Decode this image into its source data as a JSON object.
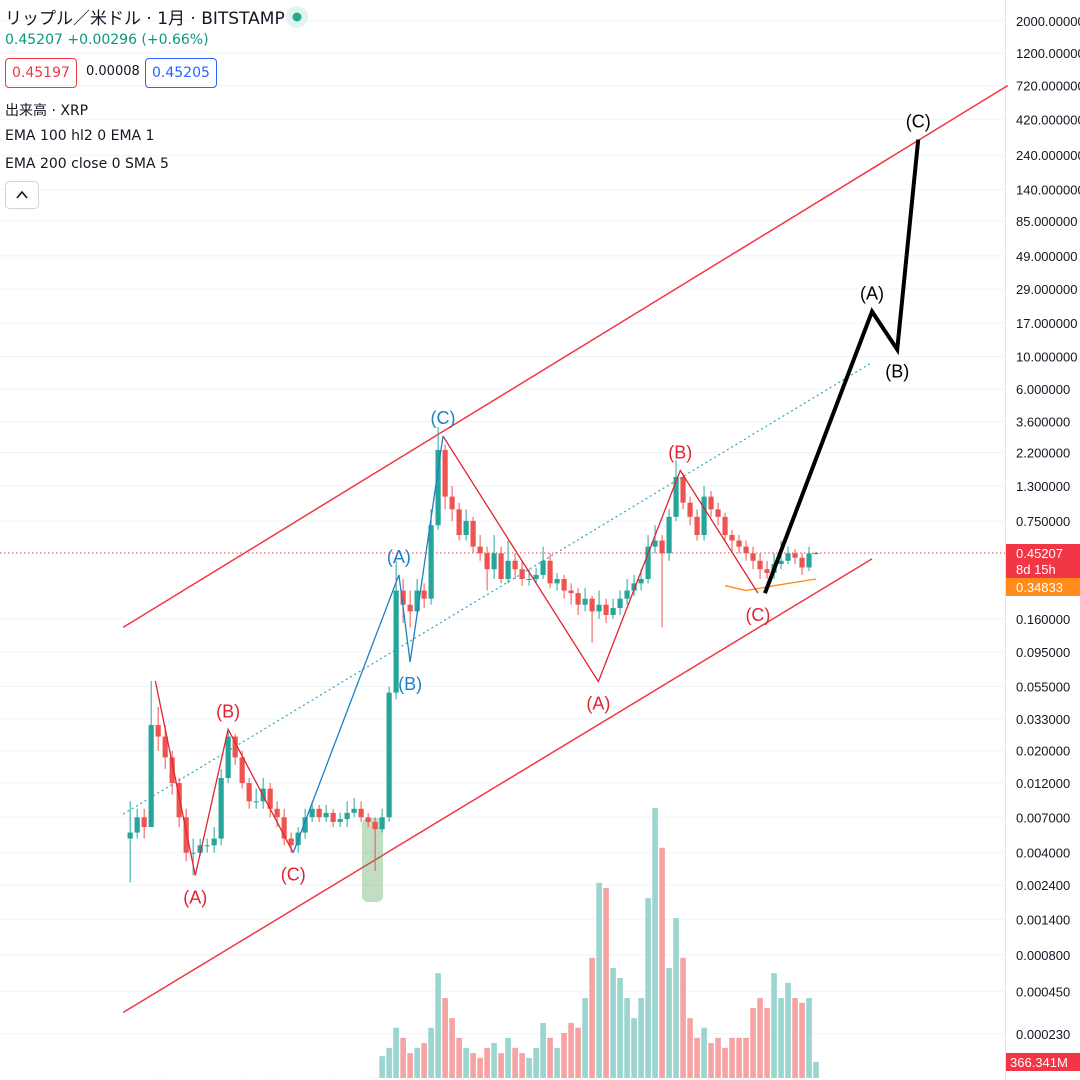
{
  "legend": {
    "title": "リップル／米ドル · 1月 · BITSTAMP",
    "last": "0.45207",
    "change": "+0.00296 (+0.66%)",
    "bid": "0.45197",
    "spread": "0.00008",
    "ask": "0.45205",
    "volume": "出来高 · XRP",
    "indicators": [
      "EMA 100 hl2 0 EMA 1",
      "EMA 200 close 0 SMA 5"
    ]
  },
  "chart_data": {
    "type": "candlestick",
    "log_scale": true,
    "grid": true,
    "up_color": "#26a69a",
    "down_color": "#ef5350",
    "xlim": [
      -18.6,
      125
    ],
    "ylim": [
      0.000111,
      2775
    ],
    "yticks": [
      {
        "value": 2000,
        "label": "2000.000000"
      },
      {
        "value": 1200,
        "label": "1200.000000"
      },
      {
        "value": 720,
        "label": "720.000000"
      },
      {
        "value": 420,
        "label": "420.000000"
      },
      {
        "value": 240,
        "label": "240.000000"
      },
      {
        "value": 140,
        "label": "140.000000"
      },
      {
        "value": 85,
        "label": "85.000000"
      },
      {
        "value": 49,
        "label": "49.000000"
      },
      {
        "value": 29,
        "label": "29.000000"
      },
      {
        "value": 17,
        "label": "17.000000"
      },
      {
        "value": 10,
        "label": "10.000000"
      },
      {
        "value": 6,
        "label": "6.000000"
      },
      {
        "value": 3.6,
        "label": "3.600000"
      },
      {
        "value": 2.2,
        "label": "2.200000"
      },
      {
        "value": 1.3,
        "label": "1.300000"
      },
      {
        "value": 0.75,
        "label": "0.750000"
      },
      {
        "value": 0.16,
        "label": "0.160000"
      },
      {
        "value": 0.095,
        "label": "0.095000"
      },
      {
        "value": 0.055,
        "label": "0.055000"
      },
      {
        "value": 0.033,
        "label": "0.033000"
      },
      {
        "value": 0.02,
        "label": "0.020000"
      },
      {
        "value": 0.012,
        "label": "0.012000"
      },
      {
        "value": 0.007,
        "label": "0.007000"
      },
      {
        "value": 0.004,
        "label": "0.004000"
      },
      {
        "value": 0.0024,
        "label": "0.002400"
      },
      {
        "value": 0.0014,
        "label": "0.001400"
      },
      {
        "value": 0.0008,
        "label": "0.000800"
      },
      {
        "value": 0.00045,
        "label": "0.000450"
      },
      {
        "value": 0.00023,
        "label": "0.000230"
      }
    ],
    "open": [
      0.005,
      0.0055,
      0.007,
      0.006,
      0.03,
      0.025,
      0.018,
      0.012,
      0.007,
      0.004,
      0.004,
      0.0045,
      0.0045,
      0.005,
      0.013,
      0.025,
      0.018,
      0.012,
      0.009,
      0.009,
      0.011,
      0.008,
      0.007,
      0.005,
      0.0045,
      0.0055,
      0.007,
      0.008,
      0.007,
      0.0075,
      0.0065,
      0.0068,
      0.0075,
      0.008,
      0.007,
      0.0065,
      0.0058,
      0.007,
      0.05,
      0.25,
      0.2,
      0.18,
      0.25,
      0.22,
      0.7,
      2.3,
      1.1,
      0.9,
      0.6,
      0.75,
      0.5,
      0.45,
      0.35,
      0.45,
      0.3,
      0.4,
      0.35,
      0.3,
      0.3,
      0.32,
      0.4,
      0.28,
      0.3,
      0.25,
      0.24,
      0.2,
      0.22,
      0.18,
      0.2,
      0.17,
      0.19,
      0.22,
      0.25,
      0.28,
      0.3,
      0.5,
      0.55,
      0.45,
      0.8,
      1.5,
      1.0,
      0.8,
      0.6,
      1.1,
      0.9,
      0.8,
      0.6,
      0.55,
      0.5,
      0.45,
      0.4,
      0.35,
      0.33,
      0.38,
      0.4,
      0.45,
      0.42,
      0.36,
      0.44911
    ],
    "high": [
      0.009,
      0.008,
      0.008,
      0.06,
      0.04,
      0.03,
      0.02,
      0.013,
      0.008,
      0.005,
      0.005,
      0.005,
      0.006,
      0.015,
      0.028,
      0.026,
      0.02,
      0.013,
      0.011,
      0.013,
      0.012,
      0.009,
      0.008,
      0.0055,
      0.006,
      0.008,
      0.009,
      0.0085,
      0.0085,
      0.008,
      0.0075,
      0.009,
      0.0095,
      0.009,
      0.0075,
      0.007,
      0.008,
      0.055,
      0.4,
      0.3,
      0.25,
      0.3,
      0.28,
      0.9,
      3.3,
      2.5,
      1.3,
      1.0,
      0.9,
      0.8,
      0.6,
      0.5,
      0.6,
      0.5,
      0.55,
      0.45,
      0.4,
      0.35,
      0.36,
      0.5,
      0.45,
      0.33,
      0.32,
      0.28,
      0.26,
      0.26,
      0.23,
      0.25,
      0.22,
      0.22,
      0.25,
      0.3,
      0.32,
      0.35,
      0.6,
      0.7,
      0.6,
      0.9,
      1.95,
      1.6,
      1.1,
      0.9,
      1.3,
      1.2,
      1.0,
      0.85,
      0.65,
      0.6,
      0.55,
      0.5,
      0.45,
      0.4,
      0.45,
      0.55,
      0.5,
      0.48,
      0.45,
      0.5,
      0.46
    ],
    "low": [
      0.0025,
      0.005,
      0.005,
      0.006,
      0.02,
      0.015,
      0.01,
      0.006,
      0.0035,
      0.0028,
      0.0038,
      0.004,
      0.004,
      0.0045,
      0.012,
      0.016,
      0.011,
      0.008,
      0.008,
      0.008,
      0.007,
      0.006,
      0.0045,
      0.004,
      0.004,
      0.005,
      0.0065,
      0.0065,
      0.0065,
      0.006,
      0.006,
      0.006,
      0.007,
      0.0065,
      0.006,
      0.003,
      0.0055,
      0.0065,
      0.045,
      0.15,
      0.14,
      0.17,
      0.19,
      0.2,
      0.65,
      0.9,
      0.75,
      0.55,
      0.55,
      0.45,
      0.4,
      0.25,
      0.3,
      0.28,
      0.28,
      0.3,
      0.27,
      0.27,
      0.28,
      0.3,
      0.26,
      0.25,
      0.22,
      0.2,
      0.17,
      0.18,
      0.11,
      0.16,
      0.15,
      0.16,
      0.17,
      0.2,
      0.23,
      0.25,
      0.28,
      0.45,
      0.14,
      0.4,
      0.75,
      0.9,
      0.7,
      0.55,
      0.55,
      0.8,
      0.7,
      0.55,
      0.45,
      0.45,
      0.4,
      0.35,
      0.3,
      0.3,
      0.3,
      0.35,
      0.38,
      0.38,
      0.32,
      0.34,
      0.44
    ],
    "close": [
      0.0055,
      0.007,
      0.006,
      0.03,
      0.025,
      0.018,
      0.012,
      0.007,
      0.004,
      0.004,
      0.0045,
      0.0045,
      0.005,
      0.013,
      0.025,
      0.018,
      0.012,
      0.009,
      0.009,
      0.011,
      0.008,
      0.007,
      0.005,
      0.0045,
      0.0055,
      0.007,
      0.008,
      0.007,
      0.0075,
      0.0065,
      0.0068,
      0.0075,
      0.008,
      0.007,
      0.0065,
      0.0058,
      0.007,
      0.05,
      0.25,
      0.2,
      0.18,
      0.25,
      0.22,
      0.7,
      2.3,
      1.1,
      0.9,
      0.6,
      0.75,
      0.5,
      0.45,
      0.35,
      0.45,
      0.3,
      0.4,
      0.35,
      0.3,
      0.3,
      0.32,
      0.4,
      0.28,
      0.3,
      0.25,
      0.24,
      0.2,
      0.22,
      0.18,
      0.2,
      0.17,
      0.19,
      0.22,
      0.25,
      0.28,
      0.3,
      0.5,
      0.55,
      0.45,
      0.8,
      1.5,
      1.0,
      0.8,
      0.6,
      1.1,
      0.9,
      0.8,
      0.6,
      0.55,
      0.5,
      0.45,
      0.4,
      0.35,
      0.33,
      0.38,
      0.4,
      0.45,
      0.42,
      0.36,
      0.44911,
      0.45207
    ],
    "volume": [
      2,
      2,
      2,
      2,
      2,
      2,
      2,
      2,
      2,
      2,
      2,
      2,
      2,
      2,
      2,
      2,
      2,
      2,
      2,
      2,
      2,
      2,
      2,
      2,
      2,
      2,
      2,
      2,
      2,
      2,
      2,
      2,
      2,
      2,
      2,
      5,
      500,
      690,
      1150,
      920,
      570,
      690,
      800,
      1150,
      2400,
      1830,
      1370,
      920,
      690,
      570,
      460,
      690,
      800,
      570,
      920,
      690,
      570,
      460,
      690,
      1260,
      920,
      690,
      1030,
      1260,
      1150,
      1830,
      2750,
      4470,
      4350,
      2520,
      2290,
      1830,
      1370,
      1830,
      4120,
      6180,
      5270,
      2520,
      3660,
      2750,
      1370,
      920,
      1150,
      800,
      920,
      690,
      920,
      920,
      920,
      1600,
      1830,
      1600,
      2400,
      1830,
      2180,
      1830,
      1720,
      1830,
      366.341
    ],
    "volume_up_color": "#9ad5cf",
    "volume_down_color": "#f5a3a3",
    "last_price": 0.45207,
    "last_price_color": "#f23645",
    "countdown": "8d 15h",
    "ema_value": 0.34833,
    "ema_color": "#ff8c1a",
    "volume_tag": {
      "value": 366.341,
      "label": "366.341M"
    },
    "ema": {
      "color": "#ff8c1a",
      "x": [
        85,
        88,
        92,
        98
      ],
      "values": [
        0.27,
        0.25,
        0.27,
        0.3
      ]
    },
    "lines": [
      {
        "color": "#f23645",
        "style": "solid",
        "x": [
          -1,
          125.4
        ],
        "values": [
          0.14,
          720
        ]
      },
      {
        "color": "#f23645",
        "style": "solid",
        "x": [
          -1,
          106
        ],
        "values": [
          0.000322,
          0.412
        ]
      },
      {
        "color": "#2aa5c0",
        "style": "dotted",
        "x": [
          -1,
          106
        ],
        "values": [
          0.00736,
          9.12
        ]
      }
    ],
    "waves": [
      {
        "color": "#e0242e",
        "width": 1.3,
        "x": [
          3.6,
          9.3,
          14,
          23.3
        ],
        "values": [
          0.06,
          0.0028,
          0.028,
          0.004
        ],
        "labels": [
          null,
          "(A)",
          "(B)",
          "(C)"
        ]
      },
      {
        "color": "#1f7fc4",
        "width": 1.3,
        "x": [
          23.3,
          38.4,
          40,
          44.7
        ],
        "values": [
          0.004,
          0.32,
          0.081,
          2.86
        ],
        "labels": [
          null,
          "(A)",
          "(B)",
          "(C)"
        ]
      },
      {
        "color": "#e0242e",
        "width": 1.3,
        "x": [
          44.7,
          66.9,
          78.6,
          89.7
        ],
        "values": [
          2.86,
          0.0595,
          1.66,
          0.24
        ],
        "labels": [
          null,
          "(A)",
          "(B)",
          "(C)"
        ]
      },
      {
        "color": "#000000",
        "width": 4,
        "x": [
          90.7,
          106,
          109.6,
          112.6
        ],
        "values": [
          0.24,
          20.4,
          11.2,
          307
        ],
        "labels": [
          null,
          "(A)",
          "(B)",
          "(C)"
        ]
      }
    ]
  }
}
